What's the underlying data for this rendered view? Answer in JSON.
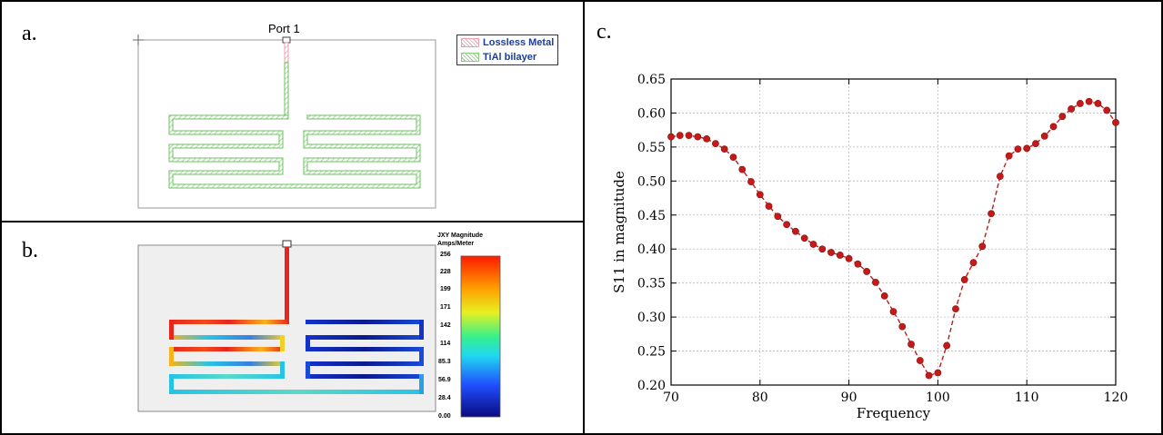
{
  "panels": {
    "a": {
      "label": "a.",
      "port_label": "Port 1",
      "legend": [
        {
          "label": "Lossless Metal",
          "color": "#e8a0b4"
        },
        {
          "label": "TiAl bilayer",
          "color": "#8ccf80"
        }
      ]
    },
    "b": {
      "label": "b.",
      "colorbar_title_line1": "JXY Magnitude",
      "colorbar_title_line2": "Amps/Meter",
      "colorbar_ticks": [
        "256",
        "228",
        "199",
        "171",
        "142",
        "114",
        "85.3",
        "56.9",
        "28.4",
        "0.00"
      ]
    },
    "c": {
      "label": "c."
    }
  },
  "colors": {
    "trace_green": "#6cc262",
    "feed_pink": "#e48aa6",
    "current_hot": "#e8251d",
    "current_cold": "#1222a8",
    "current_mid": "#27c3e6",
    "marker": "#c41a1a"
  },
  "chart_data": {
    "type": "line",
    "title": "",
    "xlabel": "Frequency",
    "ylabel": "S11 in magnitude",
    "xlim": [
      70,
      120
    ],
    "ylim": [
      0.2,
      0.65
    ],
    "xticks": [
      "70",
      "80",
      "90",
      "100",
      "110",
      "120"
    ],
    "yticks": [
      "0.20",
      "0.25",
      "0.30",
      "0.35",
      "0.40",
      "0.45",
      "0.50",
      "0.55",
      "0.60",
      "0.65"
    ],
    "grid": true,
    "line_style": "dashed",
    "series": [
      {
        "x": [
          70,
          71,
          72,
          73,
          74,
          75,
          76,
          77,
          78,
          79,
          80,
          81,
          82,
          83,
          84,
          85,
          86,
          87,
          88,
          89,
          90,
          91,
          92,
          93,
          94,
          95,
          96,
          97,
          98,
          99,
          100,
          101,
          102,
          103,
          104,
          105,
          106,
          107,
          108,
          109,
          110,
          111,
          112,
          113,
          114,
          115,
          116,
          117,
          118,
          119,
          120
        ],
        "y": [
          0.565,
          0.567,
          0.567,
          0.565,
          0.562,
          0.555,
          0.547,
          0.535,
          0.517,
          0.499,
          0.48,
          0.463,
          0.448,
          0.436,
          0.426,
          0.416,
          0.407,
          0.4,
          0.395,
          0.391,
          0.386,
          0.378,
          0.367,
          0.351,
          0.331,
          0.308,
          0.286,
          0.26,
          0.236,
          0.214,
          0.218,
          0.258,
          0.312,
          0.355,
          0.38,
          0.404,
          0.452,
          0.507,
          0.537,
          0.547,
          0.548,
          0.555,
          0.566,
          0.58,
          0.595,
          0.606,
          0.614,
          0.617,
          0.614,
          0.604,
          0.586
        ]
      }
    ]
  }
}
